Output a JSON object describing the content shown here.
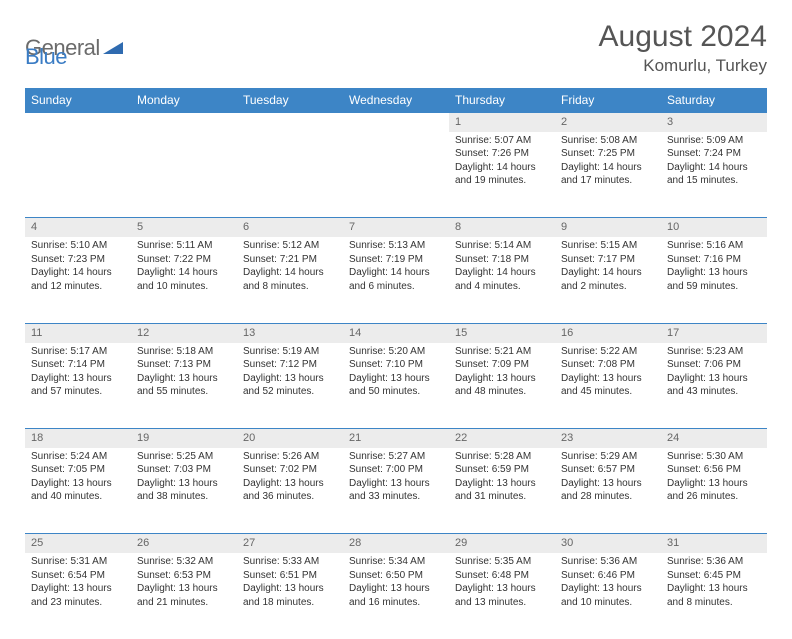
{
  "brand": {
    "general": "General",
    "blue": "Blue"
  },
  "title": "August 2024",
  "location": "Komurlu, Turkey",
  "day_names": [
    "Sunday",
    "Monday",
    "Tuesday",
    "Wednesday",
    "Thursday",
    "Friday",
    "Saturday"
  ],
  "colors": {
    "header_bg": "#3d85c6",
    "header_text": "#ffffff",
    "daynum_bg": "#ececec",
    "border": "#3d85c6",
    "text": "#333333",
    "logo_gray": "#6b6b6b",
    "logo_blue": "#3a7cc4"
  },
  "weeks": [
    [
      null,
      null,
      null,
      null,
      {
        "n": "1",
        "sr": "5:07 AM",
        "ss": "7:26 PM",
        "dh": "14",
        "dm": "19"
      },
      {
        "n": "2",
        "sr": "5:08 AM",
        "ss": "7:25 PM",
        "dh": "14",
        "dm": "17"
      },
      {
        "n": "3",
        "sr": "5:09 AM",
        "ss": "7:24 PM",
        "dh": "14",
        "dm": "15"
      }
    ],
    [
      {
        "n": "4",
        "sr": "5:10 AM",
        "ss": "7:23 PM",
        "dh": "14",
        "dm": "12"
      },
      {
        "n": "5",
        "sr": "5:11 AM",
        "ss": "7:22 PM",
        "dh": "14",
        "dm": "10"
      },
      {
        "n": "6",
        "sr": "5:12 AM",
        "ss": "7:21 PM",
        "dh": "14",
        "dm": "8"
      },
      {
        "n": "7",
        "sr": "5:13 AM",
        "ss": "7:19 PM",
        "dh": "14",
        "dm": "6"
      },
      {
        "n": "8",
        "sr": "5:14 AM",
        "ss": "7:18 PM",
        "dh": "14",
        "dm": "4"
      },
      {
        "n": "9",
        "sr": "5:15 AM",
        "ss": "7:17 PM",
        "dh": "14",
        "dm": "2"
      },
      {
        "n": "10",
        "sr": "5:16 AM",
        "ss": "7:16 PM",
        "dh": "13",
        "dm": "59"
      }
    ],
    [
      {
        "n": "11",
        "sr": "5:17 AM",
        "ss": "7:14 PM",
        "dh": "13",
        "dm": "57"
      },
      {
        "n": "12",
        "sr": "5:18 AM",
        "ss": "7:13 PM",
        "dh": "13",
        "dm": "55"
      },
      {
        "n": "13",
        "sr": "5:19 AM",
        "ss": "7:12 PM",
        "dh": "13",
        "dm": "52"
      },
      {
        "n": "14",
        "sr": "5:20 AM",
        "ss": "7:10 PM",
        "dh": "13",
        "dm": "50"
      },
      {
        "n": "15",
        "sr": "5:21 AM",
        "ss": "7:09 PM",
        "dh": "13",
        "dm": "48"
      },
      {
        "n": "16",
        "sr": "5:22 AM",
        "ss": "7:08 PM",
        "dh": "13",
        "dm": "45"
      },
      {
        "n": "17",
        "sr": "5:23 AM",
        "ss": "7:06 PM",
        "dh": "13",
        "dm": "43"
      }
    ],
    [
      {
        "n": "18",
        "sr": "5:24 AM",
        "ss": "7:05 PM",
        "dh": "13",
        "dm": "40"
      },
      {
        "n": "19",
        "sr": "5:25 AM",
        "ss": "7:03 PM",
        "dh": "13",
        "dm": "38"
      },
      {
        "n": "20",
        "sr": "5:26 AM",
        "ss": "7:02 PM",
        "dh": "13",
        "dm": "36"
      },
      {
        "n": "21",
        "sr": "5:27 AM",
        "ss": "7:00 PM",
        "dh": "13",
        "dm": "33"
      },
      {
        "n": "22",
        "sr": "5:28 AM",
        "ss": "6:59 PM",
        "dh": "13",
        "dm": "31"
      },
      {
        "n": "23",
        "sr": "5:29 AM",
        "ss": "6:57 PM",
        "dh": "13",
        "dm": "28"
      },
      {
        "n": "24",
        "sr": "5:30 AM",
        "ss": "6:56 PM",
        "dh": "13",
        "dm": "26"
      }
    ],
    [
      {
        "n": "25",
        "sr": "5:31 AM",
        "ss": "6:54 PM",
        "dh": "13",
        "dm": "23"
      },
      {
        "n": "26",
        "sr": "5:32 AM",
        "ss": "6:53 PM",
        "dh": "13",
        "dm": "21"
      },
      {
        "n": "27",
        "sr": "5:33 AM",
        "ss": "6:51 PM",
        "dh": "13",
        "dm": "18"
      },
      {
        "n": "28",
        "sr": "5:34 AM",
        "ss": "6:50 PM",
        "dh": "13",
        "dm": "16"
      },
      {
        "n": "29",
        "sr": "5:35 AM",
        "ss": "6:48 PM",
        "dh": "13",
        "dm": "13"
      },
      {
        "n": "30",
        "sr": "5:36 AM",
        "ss": "6:46 PM",
        "dh": "13",
        "dm": "10"
      },
      {
        "n": "31",
        "sr": "5:36 AM",
        "ss": "6:45 PM",
        "dh": "13",
        "dm": "8"
      }
    ]
  ],
  "labels": {
    "sunrise": "Sunrise:",
    "sunset": "Sunset:",
    "daylight": "Daylight:",
    "hours": "hours",
    "and": "and",
    "minutes": "minutes."
  }
}
